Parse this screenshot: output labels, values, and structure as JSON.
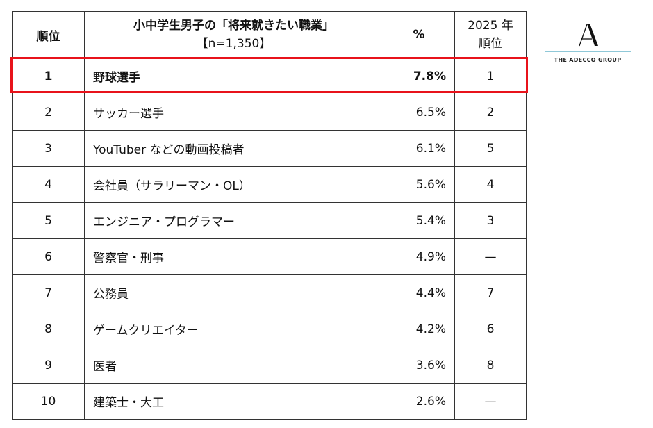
{
  "table": {
    "headers": {
      "rank": "順位",
      "title_line1": "小中学生男子の「将来就きたい職業」",
      "title_line2": "【n=1,350】",
      "percent": "%",
      "prev_line1": "2025 年",
      "prev_line2": "順位"
    },
    "rows": [
      {
        "rank": "1",
        "job": "野球選手",
        "percent": "7.8%",
        "prev": "1"
      },
      {
        "rank": "2",
        "job": "サッカー選手",
        "percent": "6.5%",
        "prev": "2"
      },
      {
        "rank": "3",
        "job": "YouTuber などの動画投稿者",
        "percent": "6.1%",
        "prev": "5"
      },
      {
        "rank": "4",
        "job": "会社員（サラリーマン・OL）",
        "percent": "5.6%",
        "prev": "4"
      },
      {
        "rank": "5",
        "job": "エンジニア・プログラマー",
        "percent": "5.4%",
        "prev": "3"
      },
      {
        "rank": "6",
        "job": "警察官・刑事",
        "percent": "4.9%",
        "prev": "—"
      },
      {
        "rank": "7",
        "job": "公務員",
        "percent": "4.4%",
        "prev": "7"
      },
      {
        "rank": "8",
        "job": "ゲームクリエイター",
        "percent": "4.2%",
        "prev": "6"
      },
      {
        "rank": "9",
        "job": "医者",
        "percent": "3.6%",
        "prev": "8"
      },
      {
        "rank": "10",
        "job": "建築士・大工",
        "percent": "2.6%",
        "prev": "—"
      }
    ]
  },
  "highlight": {
    "color": "#e8131b"
  },
  "logo": {
    "icon": "adecco-a-icon",
    "text": "THE ADECCO GROUP",
    "rule_color": "#8fc8d8"
  }
}
